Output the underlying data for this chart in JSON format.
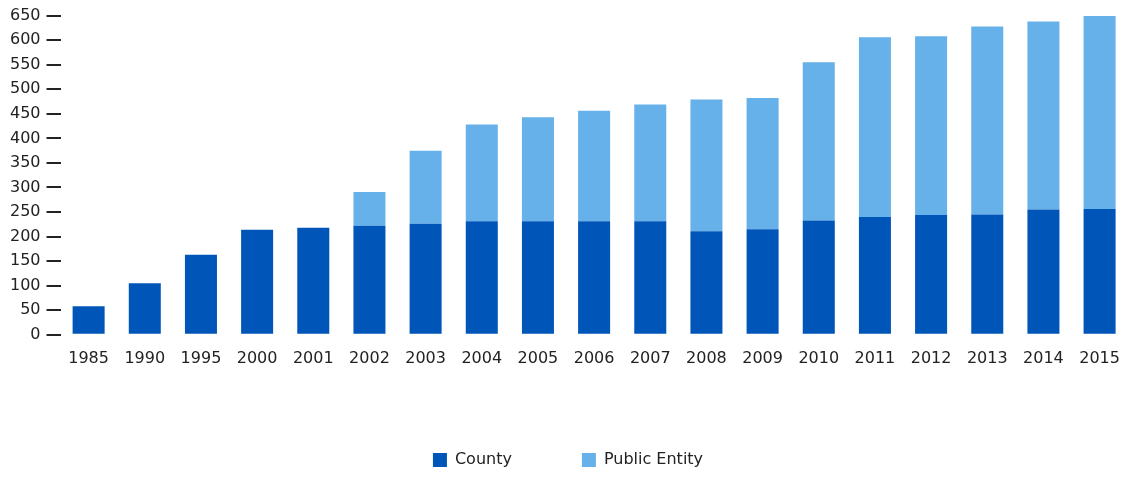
{
  "chart_data": {
    "type": "bar",
    "stacked": true,
    "categories": [
      "1985",
      "1990",
      "1995",
      "2000",
      "2001",
      "2002",
      "2003",
      "2004",
      "2005",
      "2006",
      "2007",
      "2008",
      "2009",
      "2010",
      "2011",
      "2012",
      "2013",
      "2014",
      "2015"
    ],
    "series": [
      {
        "name": "County",
        "color": "#0055b8",
        "values": [
          58,
          105,
          163,
          214,
          218,
          222,
          226,
          231,
          231,
          231,
          231,
          211,
          215,
          233,
          240,
          244,
          245,
          255,
          256
        ]
      },
      {
        "name": "Public Entity",
        "color": "#66b1e9",
        "values": [
          null,
          null,
          null,
          null,
          null,
          69,
          149,
          197,
          212,
          225,
          238,
          268,
          267,
          322,
          366,
          364,
          383,
          383,
          393
        ]
      }
    ],
    "ylim": [
      0,
      650
    ],
    "yticks": [
      0,
      50,
      100,
      150,
      200,
      250,
      300,
      350,
      400,
      450,
      500,
      550,
      600,
      650
    ],
    "grid": false,
    "legend": "bottom"
  }
}
